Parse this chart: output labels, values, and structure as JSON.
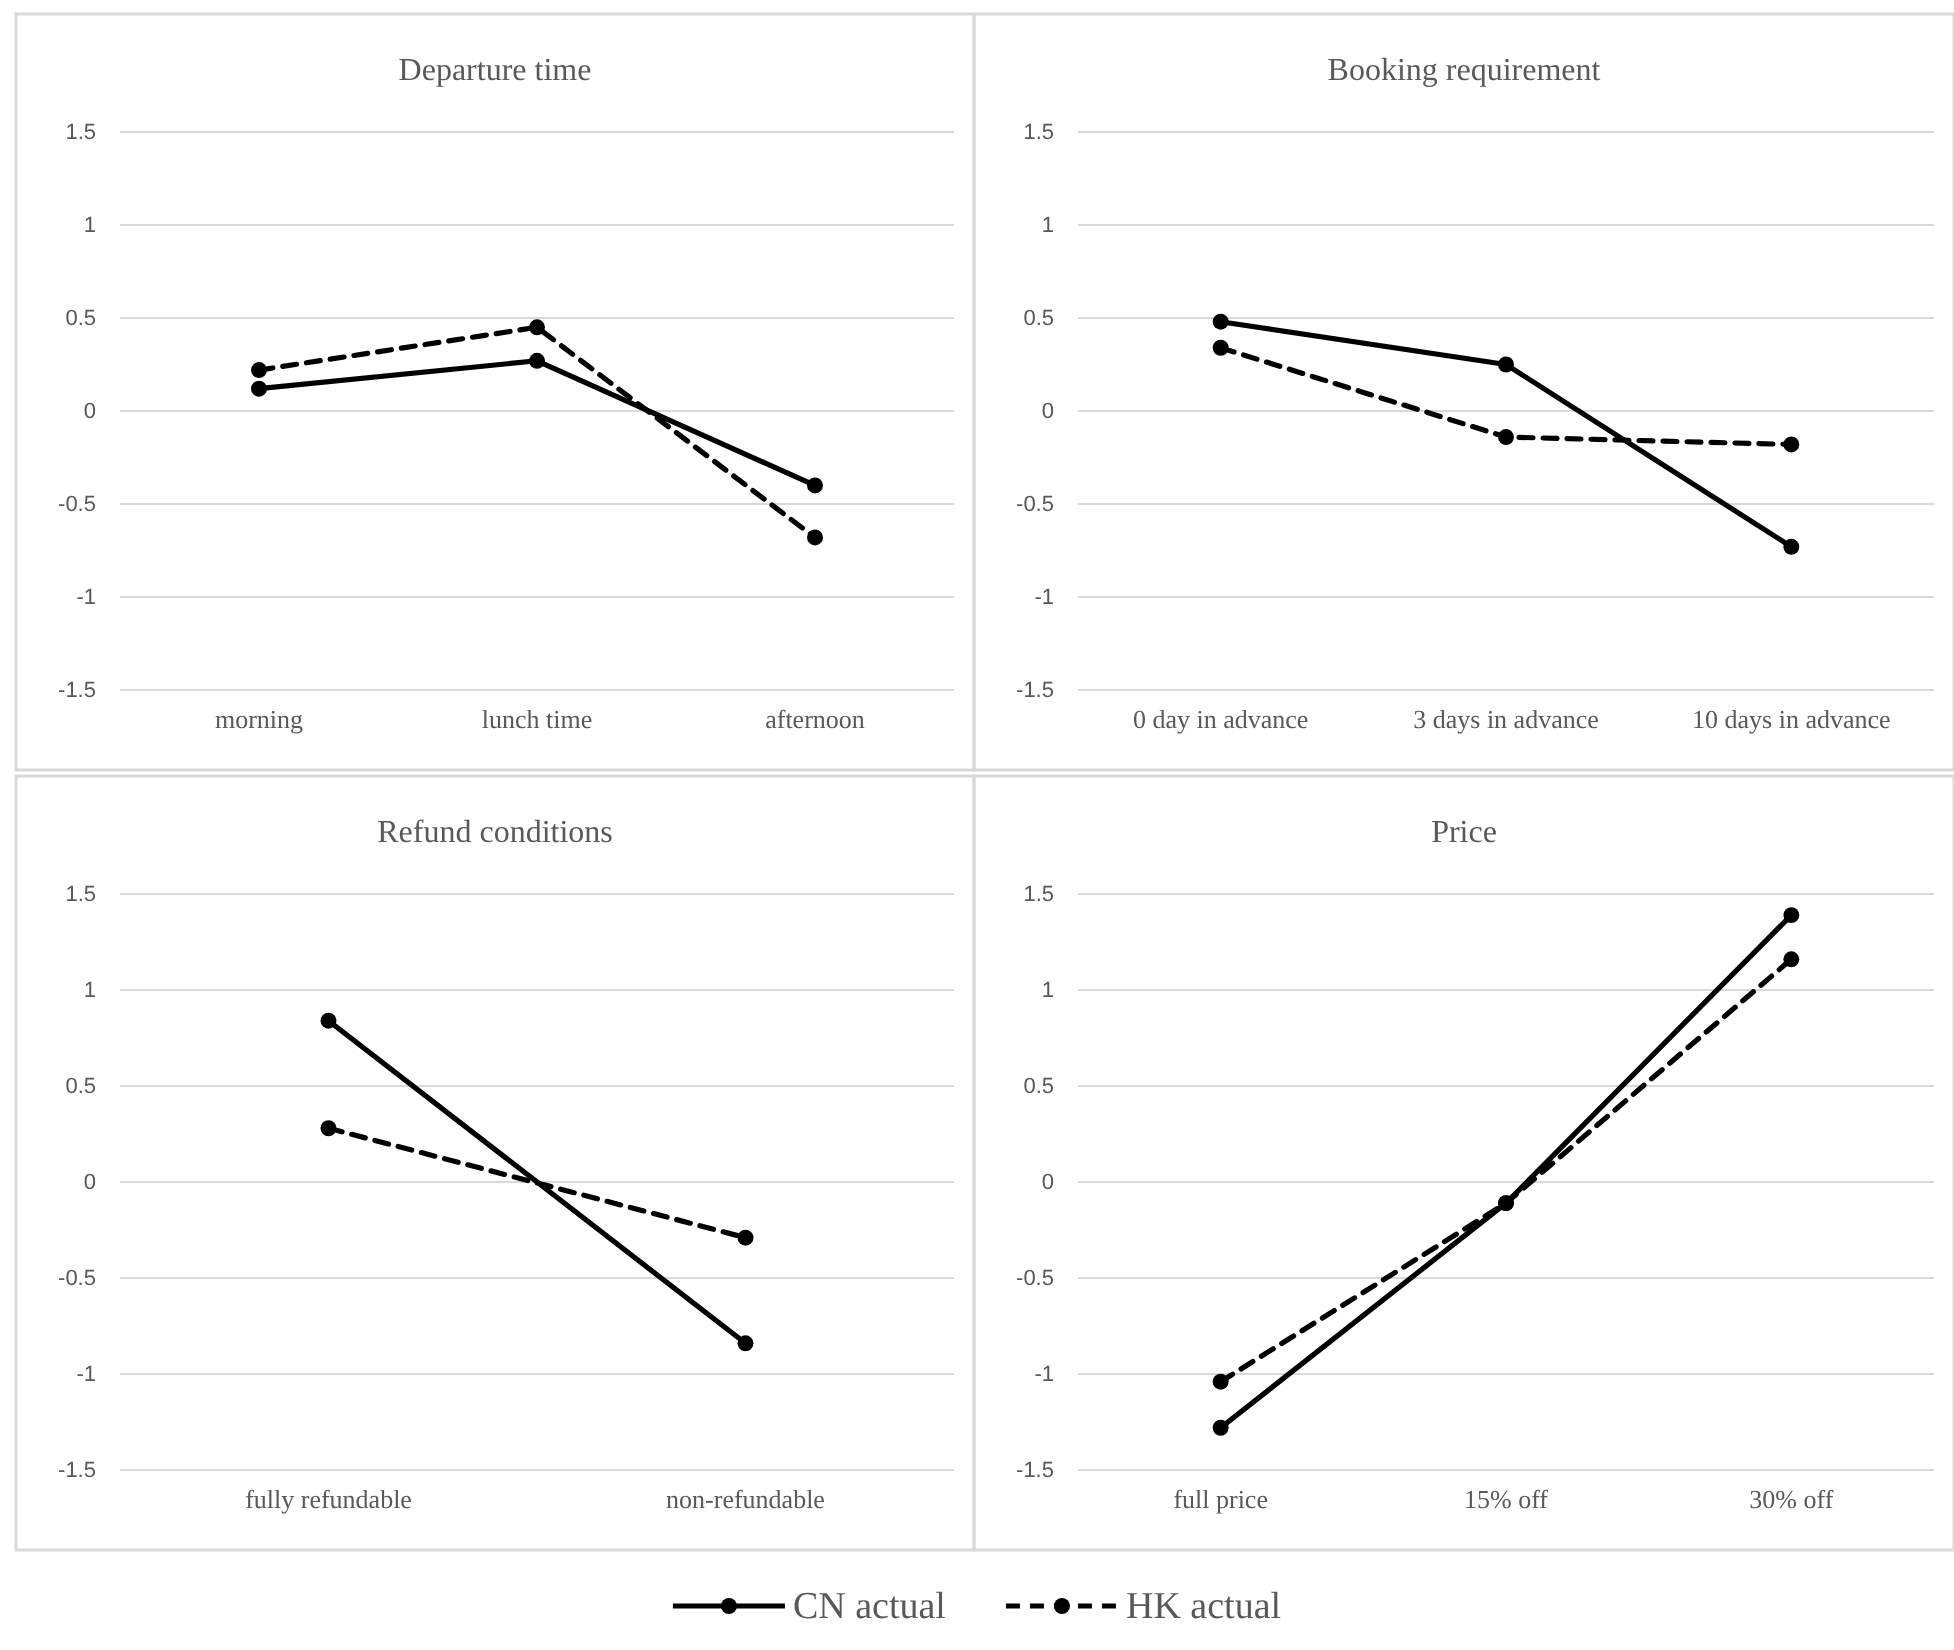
{
  "chart_data": [
    {
      "type": "line",
      "title": "Departure time",
      "categories": [
        "morning",
        "lunch time",
        "afternoon"
      ],
      "ylim": [
        -1.5,
        1.5
      ],
      "yticks": [
        -1.5,
        -1,
        -0.5,
        0,
        0.5,
        1,
        1.5
      ],
      "grid": "y",
      "marker": "circle",
      "legend": false,
      "series": [
        {
          "color": "#000000",
          "line_style": "solid",
          "values": [
            0.12,
            0.27,
            -0.4
          ]
        },
        {
          "color": "#000000",
          "line_style": "dashed",
          "values": [
            0.22,
            0.45,
            -0.68
          ]
        }
      ]
    },
    {
      "type": "line",
      "title": "Booking requirement",
      "categories": [
        "0 day in advance",
        "3 days in advance",
        "10 days in advance"
      ],
      "ylim": [
        -1.5,
        1.5
      ],
      "yticks": [
        -1.5,
        -1,
        -0.5,
        0,
        0.5,
        1,
        1.5
      ],
      "grid": "y",
      "marker": "circle",
      "legend": false,
      "series": [
        {
          "color": "#000000",
          "line_style": "solid",
          "values": [
            0.48,
            0.25,
            -0.73
          ]
        },
        {
          "color": "#000000",
          "line_style": "dashed",
          "values": [
            0.34,
            -0.14,
            -0.18
          ]
        }
      ]
    },
    {
      "type": "line",
      "title": "Refund conditions",
      "categories": [
        "fully refundable",
        "non-refundable"
      ],
      "ylim": [
        -1.5,
        1.5
      ],
      "yticks": [
        -1.5,
        -1,
        -0.5,
        0,
        0.5,
        1,
        1.5
      ],
      "grid": "y",
      "marker": "circle",
      "legend": false,
      "series": [
        {
          "color": "#000000",
          "line_style": "solid",
          "values": [
            0.84,
            -0.84
          ]
        },
        {
          "color": "#000000",
          "line_style": "dashed",
          "values": [
            0.28,
            -0.29
          ]
        }
      ]
    },
    {
      "type": "line",
      "title": "Price",
      "categories": [
        "full price",
        "15% off",
        "30% off"
      ],
      "ylim": [
        -1.5,
        1.5
      ],
      "yticks": [
        -1.5,
        -1,
        -0.5,
        0,
        0.5,
        1,
        1.5
      ],
      "grid": "y",
      "marker": "circle",
      "legend": "bottom",
      "series": [
        {
          "name": "CN actual",
          "color": "#000000",
          "line_style": "solid",
          "values": [
            -1.28,
            -0.11,
            1.39
          ]
        },
        {
          "name": "HK actual",
          "color": "#000000",
          "line_style": "dashed",
          "values": [
            -1.04,
            -0.11,
            1.16
          ]
        }
      ]
    }
  ]
}
